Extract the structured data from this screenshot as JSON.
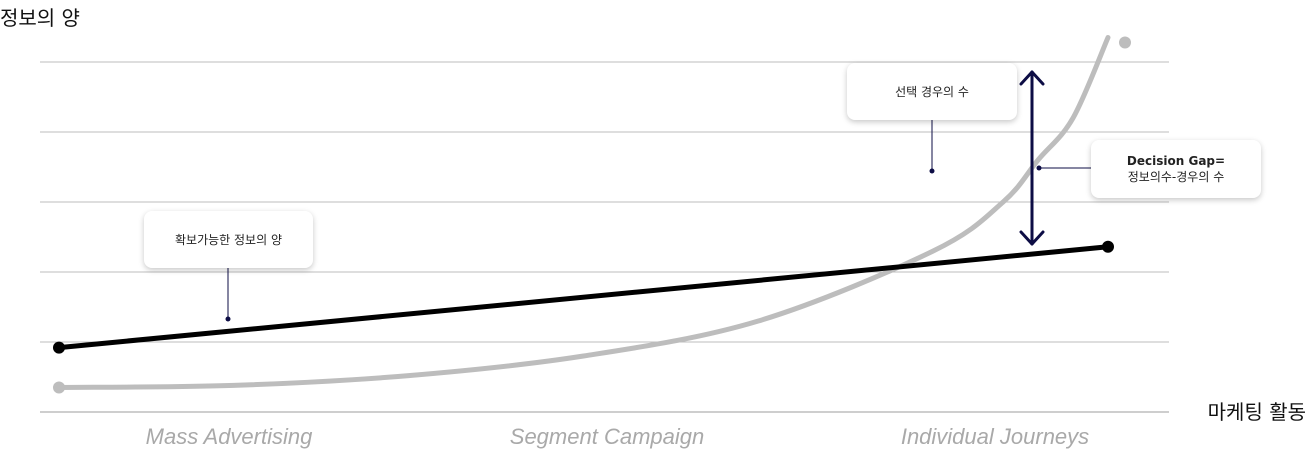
{
  "chart_data": {
    "type": "line",
    "ylabel": "정보의 양",
    "xlabel": "마케팅 활동",
    "categories": [
      "Mass Advertising",
      "Segment Campaign",
      "Individual Journeys"
    ],
    "ylim": [
      0,
      5
    ],
    "grid": true,
    "series": [
      {
        "name": "확보가능한 정보의 양",
        "color": "#000000",
        "shape": "linear",
        "x": [
          0,
          3
        ],
        "y": [
          0.92,
          2.36
        ]
      },
      {
        "name": "선택 경우의 수",
        "color": "#bdbdbd",
        "shape": "exponential",
        "x": [
          0,
          0.5,
          1.0,
          1.5,
          2.0,
          2.5,
          2.7,
          2.8,
          2.9,
          3.0
        ],
        "y": [
          0.35,
          0.38,
          0.52,
          0.8,
          1.3,
          2.3,
          3.0,
          3.6,
          4.2,
          5.35
        ]
      }
    ],
    "annotations": [
      {
        "label": "Decision Gap=",
        "sublabel": "정보의수-경우의 수",
        "color": "#0d0d45"
      }
    ]
  }
}
